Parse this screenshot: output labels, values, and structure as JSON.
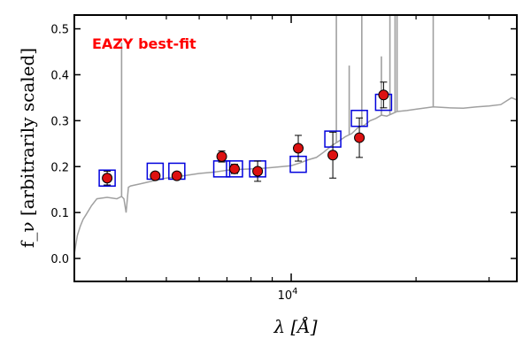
{
  "chart_data": {
    "type": "scatter",
    "title": "",
    "annotation": "EAZY best-fit",
    "annotation_color": "#ff0000",
    "xlabel": "λ [Å]",
    "ylabel": "f_ν [arbitrarily scaled]",
    "x_scale": "log",
    "xlim": [
      3000,
      35000
    ],
    "ylim": [
      -0.05,
      0.53
    ],
    "x_ticks": [
      {
        "value": 10000,
        "label": "10^4"
      }
    ],
    "y_ticks": [
      {
        "value": 0.0,
        "label": "0.0"
      },
      {
        "value": 0.1,
        "label": "0.1"
      },
      {
        "value": 0.2,
        "label": "0.2"
      },
      {
        "value": 0.3,
        "label": "0.3"
      },
      {
        "value": 0.4,
        "label": "0.4"
      },
      {
        "value": 0.5,
        "label": "0.5"
      }
    ],
    "grid": false,
    "colors": {
      "template": "#a0a0a0",
      "model_box": "#0000dd",
      "observed_fill": "#dd1111",
      "observed_edge": "#000000",
      "errorbar": "#000000"
    },
    "model_photometry": {
      "x": [
        3600,
        4700,
        5300,
        6800,
        7300,
        8300,
        10400,
        12600,
        14600,
        16700
      ],
      "y": [
        0.175,
        0.19,
        0.19,
        0.195,
        0.195,
        0.195,
        0.205,
        0.26,
        0.305,
        0.34
      ]
    },
    "observed_photometry": {
      "x": [
        3600,
        4700,
        5300,
        6800,
        7300,
        8300,
        10400,
        12600,
        14600,
        16700
      ],
      "y": [
        0.175,
        0.18,
        0.18,
        0.222,
        0.195,
        0.19,
        0.24,
        0.225,
        0.263,
        0.356
      ],
      "yerr": [
        0.015,
        0.005,
        0.005,
        0.012,
        0.01,
        0.022,
        0.028,
        0.05,
        0.043,
        0.028
      ]
    },
    "template_sed": {
      "x": [
        3000,
        3050,
        3100,
        3150,
        3200,
        3300,
        3400,
        3600,
        3800,
        3900,
        3950,
        4000,
        4050,
        4100,
        4300,
        4600,
        5000,
        5500,
        6000,
        6500,
        7000,
        7500,
        8000,
        8500,
        9000,
        9500,
        10000,
        10500,
        11000,
        11500,
        12000,
        12500,
        13000,
        13500,
        14000,
        14500,
        15000,
        15500,
        16000,
        16500,
        17000,
        18000,
        19000,
        20000,
        22000,
        24000,
        26000,
        28000,
        30000,
        32000,
        34000,
        35000
      ],
      "y": [
        0.01,
        0.05,
        0.07,
        0.085,
        0.095,
        0.115,
        0.13,
        0.133,
        0.13,
        0.135,
        0.13,
        0.1,
        0.155,
        0.158,
        0.162,
        0.168,
        0.175,
        0.18,
        0.185,
        0.188,
        0.192,
        0.194,
        0.195,
        0.196,
        0.198,
        0.2,
        0.202,
        0.208,
        0.215,
        0.22,
        0.232,
        0.245,
        0.255,
        0.265,
        0.272,
        0.285,
        0.29,
        0.3,
        0.305,
        0.312,
        0.31,
        0.32,
        0.322,
        0.325,
        0.33,
        0.328,
        0.327,
        0.33,
        0.332,
        0.335,
        0.35,
        0.345
      ]
    },
    "template_spikes": [
      {
        "x": 3900,
        "y": 0.47
      },
      {
        "x": 12850,
        "y": 0.8
      },
      {
        "x": 13800,
        "y": 0.42
      },
      {
        "x": 14800,
        "y": 0.8
      },
      {
        "x": 16500,
        "y": 0.44
      },
      {
        "x": 17300,
        "y": 0.8
      },
      {
        "x": 17800,
        "y": 0.8
      },
      {
        "x": 18000,
        "y": 0.8
      },
      {
        "x": 22000,
        "y": 0.8
      }
    ]
  }
}
